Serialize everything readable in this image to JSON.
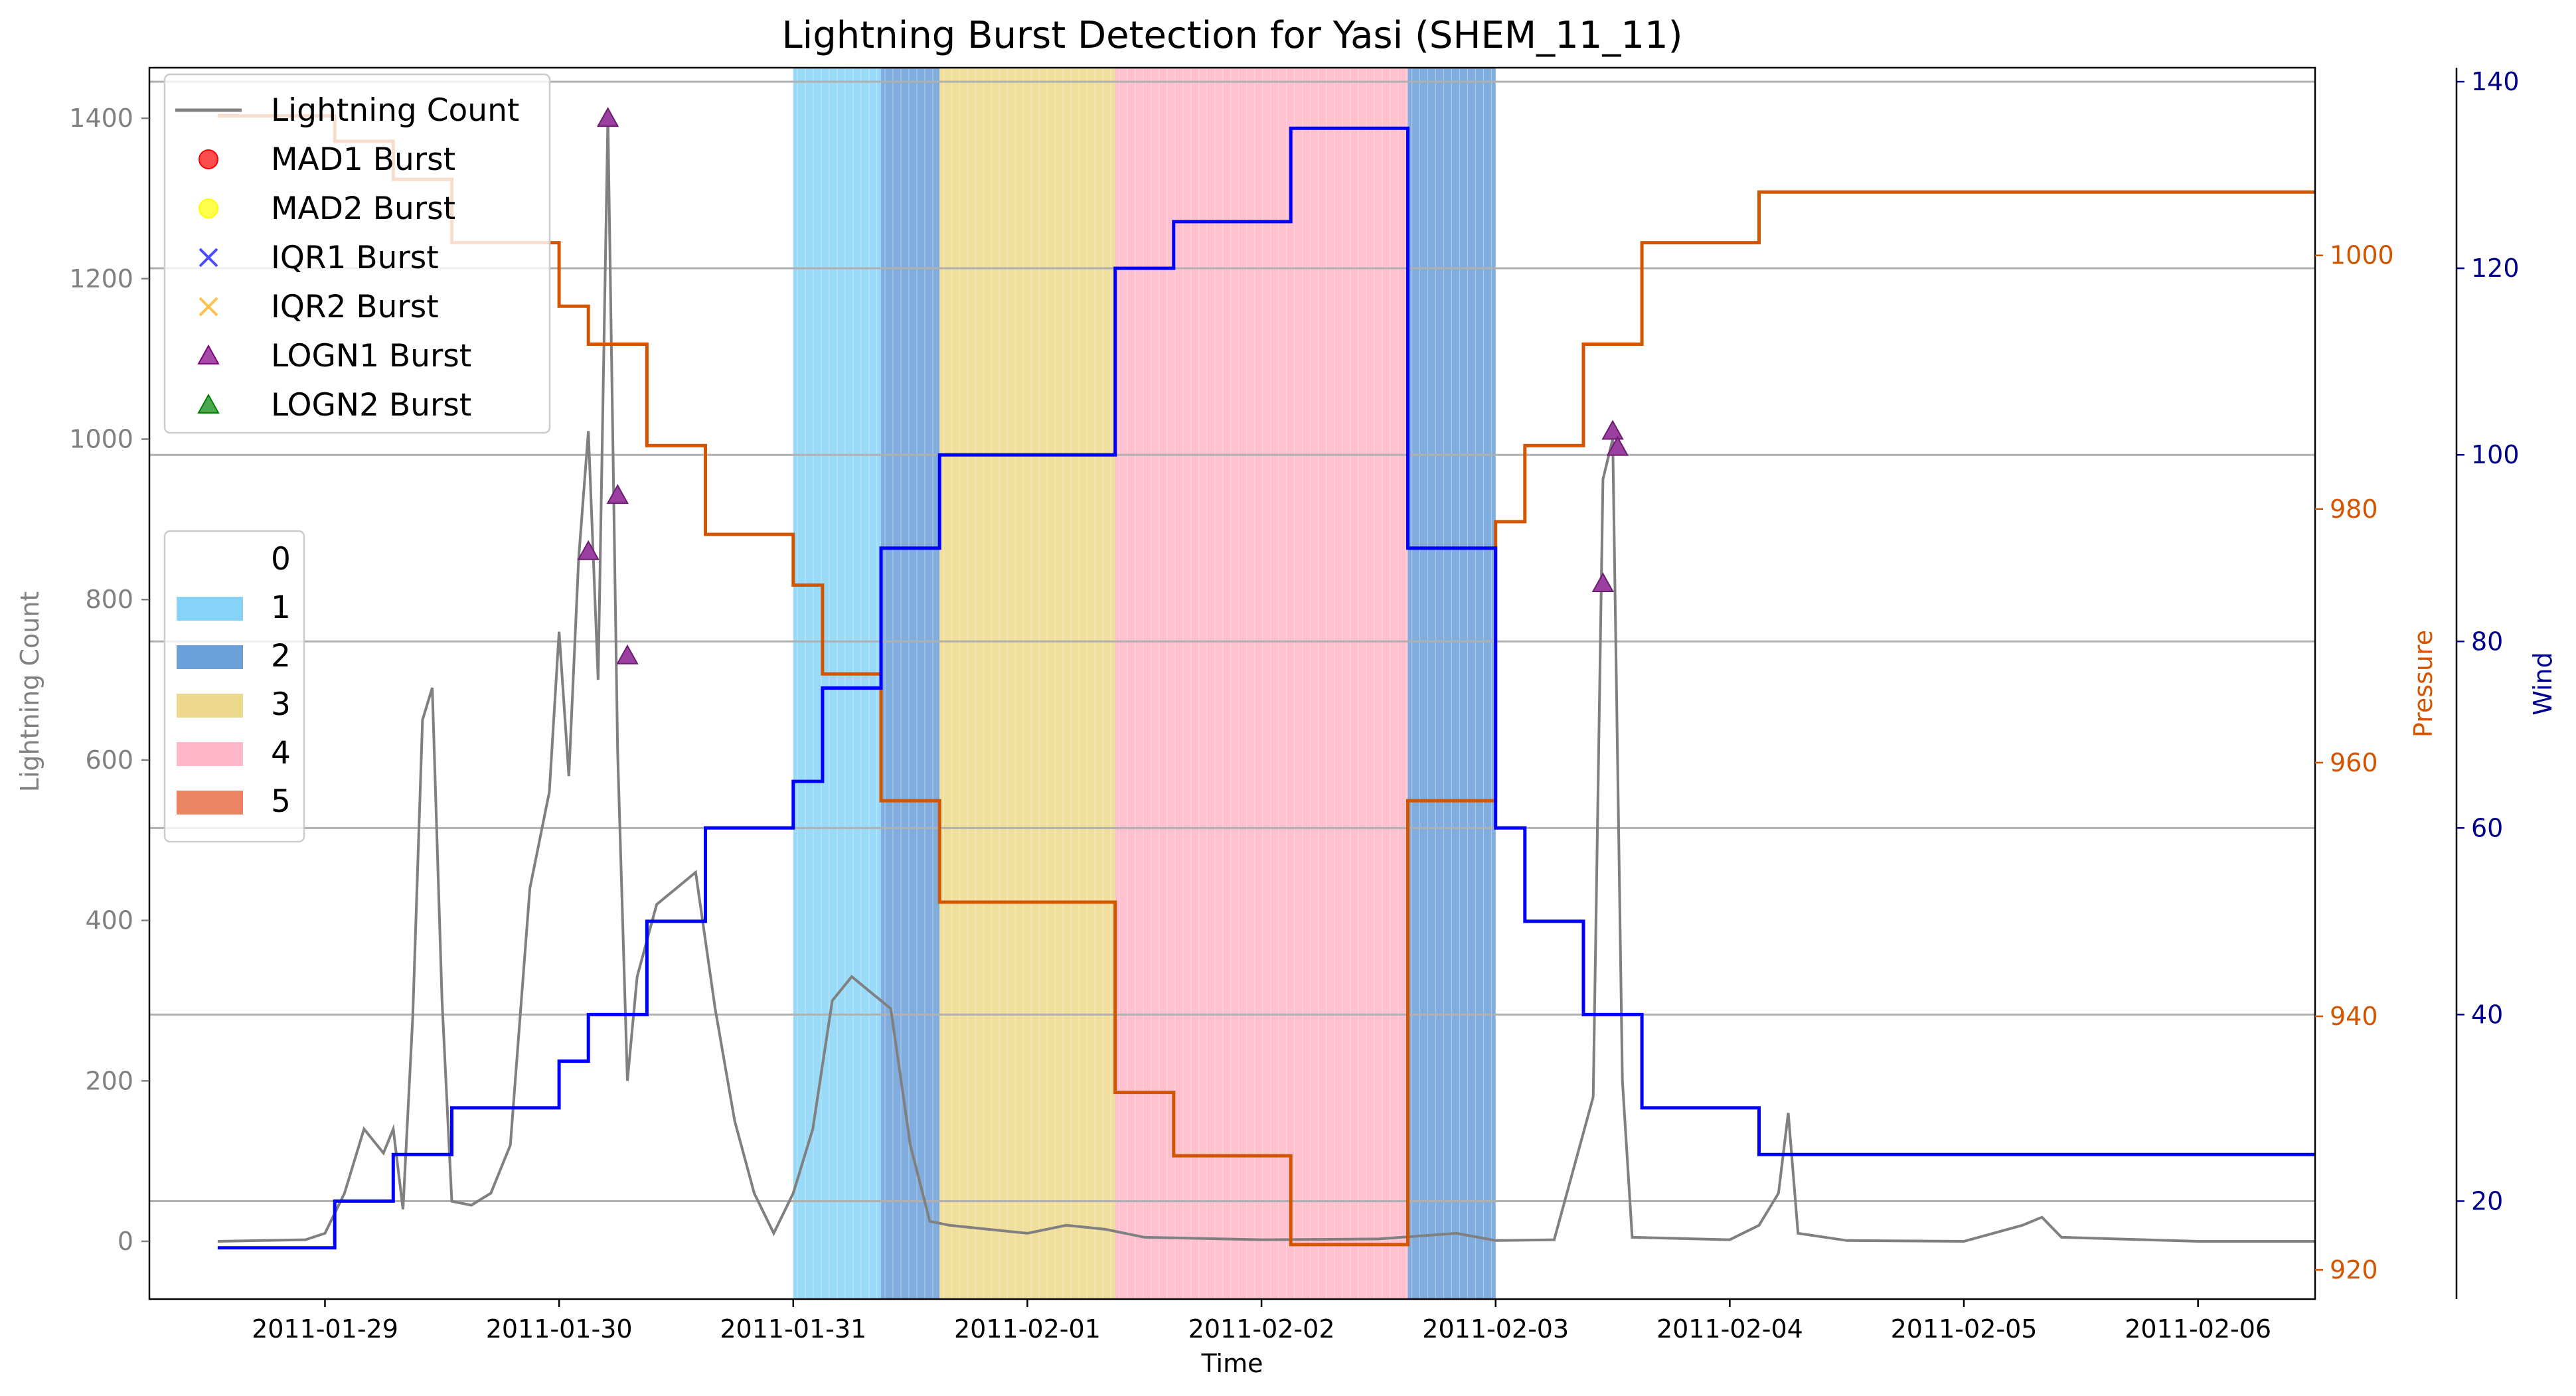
{
  "chart_data": {
    "type": "line",
    "title": "Lightning Burst Detection for Yasi (SHEM_11_11)",
    "xlabel": "Time",
    "ylabel_left": "Lightning Count",
    "ylabel_right": "Pressure",
    "ylabel_right2": "Wind",
    "x_range": [
      "2011-01-28T06:00",
      "2011-02-06T12:00"
    ],
    "x_ticks": [
      "2011-01-29",
      "2011-01-30",
      "2011-01-31",
      "2011-02-01",
      "2011-02-02",
      "2011-02-03",
      "2011-02-04",
      "2011-02-05",
      "2011-02-06"
    ],
    "axes": {
      "lightning": {
        "range": [
          -72,
          1463
        ],
        "ticks": [
          0,
          200,
          400,
          600,
          800,
          1000,
          1200,
          1400
        ],
        "color": "#808080"
      },
      "pressure": {
        "range": [
          917.7,
          1014.8
        ],
        "ticks": [
          920,
          940,
          960,
          980,
          1000
        ],
        "color": "#d45500"
      },
      "wind": {
        "range": [
          9.5,
          141.5
        ],
        "ticks": [
          20,
          40,
          60,
          80,
          100,
          120,
          140
        ],
        "color": "#00008b"
      }
    },
    "grid": "horizontal lines at wind ticks",
    "legend_position": "upper left",
    "series": [
      {
        "name": "Lightning Count",
        "color": "#808080",
        "axis": "lightning",
        "points": [
          [
            "2011-01-28T13:00",
            0
          ],
          [
            "2011-01-28T22:00",
            2
          ],
          [
            "2011-01-29T00:00",
            10
          ],
          [
            "2011-01-29T02:00",
            60
          ],
          [
            "2011-01-29T04:00",
            140
          ],
          [
            "2011-01-29T06:00",
            110
          ],
          [
            "2011-01-29T07:00",
            140
          ],
          [
            "2011-01-29T08:00",
            40
          ],
          [
            "2011-01-29T09:00",
            280
          ],
          [
            "2011-01-29T10:00",
            650
          ],
          [
            "2011-01-29T11:00",
            690
          ],
          [
            "2011-01-29T12:00",
            300
          ],
          [
            "2011-01-29T13:00",
            50
          ],
          [
            "2011-01-29T15:00",
            45
          ],
          [
            "2011-01-29T17:00",
            60
          ],
          [
            "2011-01-29T19:00",
            120
          ],
          [
            "2011-01-29T21:00",
            440
          ],
          [
            "2011-01-29T23:00",
            560
          ],
          [
            "2011-01-30T00:00",
            760
          ],
          [
            "2011-01-30T01:00",
            580
          ],
          [
            "2011-01-30T02:00",
            850
          ],
          [
            "2011-01-30T03:00",
            1010
          ],
          [
            "2011-01-30T04:00",
            700
          ],
          [
            "2011-01-30T05:00",
            1400
          ],
          [
            "2011-01-30T06:00",
            610
          ],
          [
            "2011-01-30T07:00",
            200
          ],
          [
            "2011-01-30T08:00",
            330
          ],
          [
            "2011-01-30T10:00",
            420
          ],
          [
            "2011-01-30T12:00",
            440
          ],
          [
            "2011-01-30T14:00",
            460
          ],
          [
            "2011-01-30T16:00",
            290
          ],
          [
            "2011-01-30T18:00",
            150
          ],
          [
            "2011-01-30T20:00",
            60
          ],
          [
            "2011-01-30T22:00",
            10
          ],
          [
            "2011-01-31T00:00",
            60
          ],
          [
            "2011-01-31T02:00",
            140
          ],
          [
            "2011-01-31T04:00",
            300
          ],
          [
            "2011-01-31T06:00",
            330
          ],
          [
            "2011-01-31T08:00",
            310
          ],
          [
            "2011-01-31T10:00",
            290
          ],
          [
            "2011-01-31T12:00",
            120
          ],
          [
            "2011-01-31T14:00",
            25
          ],
          [
            "2011-01-31T16:00",
            20
          ],
          [
            "2011-01-31T20:00",
            15
          ],
          [
            "2011-02-01T00:00",
            10
          ],
          [
            "2011-02-01T04:00",
            20
          ],
          [
            "2011-02-01T08:00",
            15
          ],
          [
            "2011-02-01T12:00",
            5
          ],
          [
            "2011-02-02T00:00",
            2
          ],
          [
            "2011-02-02T12:00",
            3
          ],
          [
            "2011-02-02T20:00",
            10
          ],
          [
            "2011-02-03T00:00",
            1
          ],
          [
            "2011-02-03T06:00",
            2
          ],
          [
            "2011-02-03T10:00",
            180
          ],
          [
            "2011-02-03T11:00",
            950
          ],
          [
            "2011-02-03T12:00",
            1000
          ],
          [
            "2011-02-03T13:00",
            200
          ],
          [
            "2011-02-03T14:00",
            5
          ],
          [
            "2011-02-04T00:00",
            2
          ],
          [
            "2011-02-04T03:00",
            20
          ],
          [
            "2011-02-04T05:00",
            60
          ],
          [
            "2011-02-04T06:00",
            160
          ],
          [
            "2011-02-04T07:00",
            10
          ],
          [
            "2011-02-04T12:00",
            1
          ],
          [
            "2011-02-05T00:00",
            0
          ],
          [
            "2011-02-05T06:00",
            20
          ],
          [
            "2011-02-05T08:00",
            30
          ],
          [
            "2011-02-05T10:00",
            5
          ],
          [
            "2011-02-06T00:00",
            0
          ],
          [
            "2011-02-06T12:00",
            0
          ]
        ]
      },
      {
        "name": "Pressure",
        "color": "#d45500",
        "axis": "pressure",
        "points": [
          [
            "2011-01-28T13:00",
            1011
          ],
          [
            "2011-01-29T01:00",
            1011
          ],
          [
            "2011-01-29T01:00",
            1009
          ],
          [
            "2011-01-29T07:00",
            1009
          ],
          [
            "2011-01-29T07:00",
            1006
          ],
          [
            "2011-01-29T13:00",
            1006
          ],
          [
            "2011-01-29T13:00",
            1001
          ],
          [
            "2011-01-30T00:00",
            1001
          ],
          [
            "2011-01-30T00:00",
            996
          ],
          [
            "2011-01-30T03:00",
            996
          ],
          [
            "2011-01-30T03:00",
            993
          ],
          [
            "2011-01-30T09:00",
            993
          ],
          [
            "2011-01-30T09:00",
            985
          ],
          [
            "2011-01-30T15:00",
            985
          ],
          [
            "2011-01-30T15:00",
            978
          ],
          [
            "2011-01-31T00:00",
            978
          ],
          [
            "2011-01-31T00:00",
            974
          ],
          [
            "2011-01-31T03:00",
            974
          ],
          [
            "2011-01-31T03:00",
            967
          ],
          [
            "2011-01-31T09:00",
            967
          ],
          [
            "2011-01-31T09:00",
            957
          ],
          [
            "2011-01-31T15:00",
            957
          ],
          [
            "2011-01-31T15:00",
            949
          ],
          [
            "2011-02-01T09:00",
            949
          ],
          [
            "2011-02-01T09:00",
            934
          ],
          [
            "2011-02-01T15:00",
            934
          ],
          [
            "2011-02-01T15:00",
            929
          ],
          [
            "2011-02-02T03:00",
            929
          ],
          [
            "2011-02-02T03:00",
            922
          ],
          [
            "2011-02-02T15:00",
            922
          ],
          [
            "2011-02-02T15:00",
            957
          ],
          [
            "2011-02-03T00:00",
            957
          ],
          [
            "2011-02-03T00:00",
            979
          ],
          [
            "2011-02-03T03:00",
            979
          ],
          [
            "2011-02-03T03:00",
            985
          ],
          [
            "2011-02-03T09:00",
            985
          ],
          [
            "2011-02-03T09:00",
            993
          ],
          [
            "2011-02-03T15:00",
            993
          ],
          [
            "2011-02-03T15:00",
            1001
          ],
          [
            "2011-02-04T03:00",
            1001
          ],
          [
            "2011-02-04T03:00",
            1005
          ],
          [
            "2011-02-06T12:00",
            1005
          ]
        ]
      },
      {
        "name": "Wind",
        "color": "#0000ff",
        "axis": "wind",
        "points": [
          [
            "2011-01-28T13:00",
            15
          ],
          [
            "2011-01-29T01:00",
            15
          ],
          [
            "2011-01-29T01:00",
            20
          ],
          [
            "2011-01-29T07:00",
            20
          ],
          [
            "2011-01-29T07:00",
            25
          ],
          [
            "2011-01-29T13:00",
            25
          ],
          [
            "2011-01-29T13:00",
            30
          ],
          [
            "2011-01-30T00:00",
            30
          ],
          [
            "2011-01-30T00:00",
            35
          ],
          [
            "2011-01-30T03:00",
            35
          ],
          [
            "2011-01-30T03:00",
            40
          ],
          [
            "2011-01-30T09:00",
            40
          ],
          [
            "2011-01-30T09:00",
            50
          ],
          [
            "2011-01-30T15:00",
            50
          ],
          [
            "2011-01-30T15:00",
            60
          ],
          [
            "2011-01-31T00:00",
            60
          ],
          [
            "2011-01-31T00:00",
            65
          ],
          [
            "2011-01-31T03:00",
            65
          ],
          [
            "2011-01-31T03:00",
            75
          ],
          [
            "2011-01-31T09:00",
            75
          ],
          [
            "2011-01-31T09:00",
            90
          ],
          [
            "2011-01-31T15:00",
            90
          ],
          [
            "2011-01-31T15:00",
            100
          ],
          [
            "2011-02-01T09:00",
            100
          ],
          [
            "2011-02-01T09:00",
            120
          ],
          [
            "2011-02-01T15:00",
            120
          ],
          [
            "2011-02-01T15:00",
            125
          ],
          [
            "2011-02-02T03:00",
            125
          ],
          [
            "2011-02-02T03:00",
            135
          ],
          [
            "2011-02-02T15:00",
            135
          ],
          [
            "2011-02-02T15:00",
            90
          ],
          [
            "2011-02-03T00:00",
            90
          ],
          [
            "2011-02-03T00:00",
            60
          ],
          [
            "2011-02-03T03:00",
            60
          ],
          [
            "2011-02-03T03:00",
            50
          ],
          [
            "2011-02-03T09:00",
            50
          ],
          [
            "2011-02-03T09:00",
            40
          ],
          [
            "2011-02-03T15:00",
            40
          ],
          [
            "2011-02-03T15:00",
            30
          ],
          [
            "2011-02-04T03:00",
            30
          ],
          [
            "2011-02-04T03:00",
            25
          ],
          [
            "2011-02-06T12:00",
            25
          ]
        ]
      }
    ],
    "burst_markers": [
      {
        "name": "LOGN1 Burst",
        "points": [
          [
            "2011-01-30T03:00",
            860
          ],
          [
            "2011-01-30T05:00",
            1400
          ],
          [
            "2011-01-30T06:00",
            930
          ],
          [
            "2011-01-30T07:00",
            730
          ],
          [
            "2011-02-03T11:00",
            820
          ],
          [
            "2011-02-03T12:00",
            1010
          ],
          [
            "2011-02-03T12:30",
            990
          ]
        ]
      }
    ],
    "category_bands": [
      {
        "category": "1",
        "from": "2011-01-31T00:00",
        "to": "2011-01-31T09:00"
      },
      {
        "category": "2",
        "from": "2011-01-31T09:00",
        "to": "2011-01-31T15:00"
      },
      {
        "category": "3",
        "from": "2011-01-31T15:00",
        "to": "2011-02-01T09:00"
      },
      {
        "category": "4",
        "from": "2011-02-01T09:00",
        "to": "2011-02-02T15:00"
      },
      {
        "category": "2",
        "from": "2011-02-02T15:00",
        "to": "2011-02-03T00:00"
      }
    ],
    "legend_series": [
      {
        "label": "Lightning Count",
        "kind": "line",
        "color": "#808080"
      },
      {
        "label": "MAD1 Burst",
        "kind": "circle",
        "color": "#ff0000"
      },
      {
        "label": "MAD2 Burst",
        "kind": "circle",
        "color": "#ffff00"
      },
      {
        "label": "IQR1 Burst",
        "kind": "x",
        "color": "#0000ff"
      },
      {
        "label": "IQR2 Burst",
        "kind": "x",
        "color": "#ffa500"
      },
      {
        "label": "LOGN1 Burst",
        "kind": "triangle",
        "color": "#800080"
      },
      {
        "label": "LOGN2 Burst",
        "kind": "triangle",
        "color": "#008000"
      }
    ],
    "legend_categories": [
      {
        "label": "0",
        "color": ""
      },
      {
        "label": "1",
        "color": "#87d3f8"
      },
      {
        "label": "2",
        "color": "#6a9fd8"
      },
      {
        "label": "3",
        "color": "#edd98b"
      },
      {
        "label": "4",
        "color": "#ffb6c8"
      },
      {
        "label": "5",
        "color": "#ec8363"
      }
    ]
  }
}
